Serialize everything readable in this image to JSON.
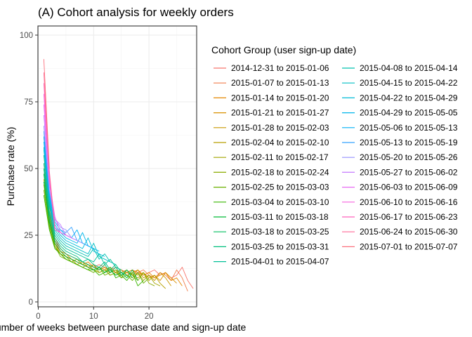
{
  "chart_data": {
    "type": "line",
    "title": "(A) Cohort analysis for weekly orders",
    "xlabel": "Number of weeks between purchase date and sign-up date",
    "ylabel": "Purchase rate (%)",
    "xlim": [
      0,
      28
    ],
    "ylim": [
      0,
      100
    ],
    "x_ticks": [
      0,
      10,
      20
    ],
    "x_tick_labels": [
      "0",
      "10",
      "20"
    ],
    "y_ticks": [
      0,
      25,
      50,
      75,
      100
    ],
    "y_tick_labels": [
      "0",
      "25",
      "50",
      "75",
      "100"
    ],
    "grid": true,
    "legend": {
      "title": "Cohort Group (user sign-up date)",
      "position": "right",
      "columns": 2
    },
    "series": [
      {
        "name": "2014-12-31 to 2015-01-06",
        "color": "#F8766D",
        "values": [
          62,
          38,
          24,
          20,
          18,
          17,
          16,
          15,
          14,
          13,
          14,
          13,
          12,
          13,
          12,
          11,
          12,
          11,
          10,
          11,
          12,
          10,
          11,
          9,
          10,
          13,
          8,
          5
        ]
      },
      {
        "name": "2015-01-07 to 2015-01-13",
        "color": "#F07E4D",
        "values": [
          58,
          36,
          23,
          19,
          17,
          16,
          15,
          14,
          13,
          14,
          12,
          13,
          12,
          11,
          12,
          11,
          10,
          11,
          12,
          10,
          9,
          11,
          10,
          8,
          12,
          9,
          4
        ]
      },
      {
        "name": "2015-01-14 to 2015-01-20",
        "color": "#E58700",
        "values": [
          55,
          34,
          22,
          19,
          18,
          16,
          15,
          14,
          15,
          13,
          12,
          13,
          11,
          12,
          11,
          10,
          11,
          12,
          10,
          11,
          9,
          10,
          11,
          8,
          9,
          6
        ]
      },
      {
        "name": "2015-01-21 to 2015-01-27",
        "color": "#D89000",
        "values": [
          52,
          33,
          22,
          18,
          17,
          16,
          15,
          14,
          13,
          12,
          13,
          12,
          11,
          12,
          10,
          11,
          12,
          10,
          11,
          9,
          10,
          8,
          11,
          9,
          7
        ]
      },
      {
        "name": "2015-01-28 to 2015-02-03",
        "color": "#C99800",
        "values": [
          50,
          32,
          21,
          18,
          16,
          15,
          14,
          15,
          13,
          12,
          11,
          12,
          13,
          11,
          10,
          11,
          10,
          12,
          9,
          10,
          8,
          11,
          9,
          6
        ]
      },
      {
        "name": "2015-02-04 to 2015-02-10",
        "color": "#B79F00",
        "values": [
          48,
          31,
          22,
          19,
          17,
          16,
          14,
          13,
          14,
          12,
          13,
          11,
          12,
          10,
          11,
          12,
          10,
          9,
          11,
          8,
          10,
          7,
          5
        ]
      },
      {
        "name": "2015-02-11 to 2015-02-17",
        "color": "#A3A500",
        "values": [
          46,
          30,
          21,
          18,
          16,
          15,
          16,
          14,
          13,
          12,
          11,
          12,
          10,
          11,
          12,
          10,
          9,
          11,
          8,
          10,
          7,
          6
        ]
      },
      {
        "name": "2015-02-18 to 2015-02-24",
        "color": "#8BAB00",
        "values": [
          44,
          29,
          20,
          18,
          17,
          15,
          14,
          13,
          12,
          14,
          11,
          12,
          10,
          11,
          9,
          12,
          10,
          8,
          11,
          7,
          6
        ]
      },
      {
        "name": "2015-02-25 to 2015-03-03",
        "color": "#6BB100",
        "values": [
          42,
          28,
          21,
          17,
          16,
          15,
          14,
          13,
          12,
          11,
          13,
          10,
          11,
          12,
          9,
          10,
          8,
          11,
          7,
          9
        ]
      },
      {
        "name": "2015-03-04 to 2015-03-10",
        "color": "#39B600",
        "values": [
          40,
          27,
          20,
          18,
          16,
          15,
          14,
          13,
          12,
          12,
          10,
          11,
          13,
          9,
          10,
          8,
          11,
          6,
          8
        ]
      },
      {
        "name": "2015-03-11 to 2015-03-18",
        "color": "#00BA38",
        "values": [
          45,
          30,
          22,
          19,
          17,
          16,
          15,
          14,
          13,
          12,
          13,
          11,
          12,
          10,
          11,
          9,
          12,
          8
        ]
      },
      {
        "name": "2015-03-18 to 2015-03-25",
        "color": "#00BD5F",
        "values": [
          48,
          31,
          23,
          20,
          18,
          17,
          16,
          15,
          14,
          13,
          12,
          14,
          11,
          13,
          10,
          12,
          9
        ]
      },
      {
        "name": "2015-03-25 to 2015-03-31",
        "color": "#00BF7D",
        "values": [
          50,
          33,
          24,
          21,
          19,
          18,
          17,
          15,
          16,
          14,
          13,
          15,
          12,
          14,
          11,
          10
        ]
      },
      {
        "name": "2015-04-01 to 2015-04-07",
        "color": "#00C097",
        "values": [
          52,
          34,
          25,
          22,
          20,
          19,
          18,
          17,
          16,
          15,
          18,
          14,
          16,
          13,
          12
        ]
      },
      {
        "name": "2015-04-08 to 2015-04-14",
        "color": "#00C0AF",
        "values": [
          55,
          36,
          26,
          23,
          21,
          20,
          19,
          18,
          17,
          20,
          16,
          18,
          15,
          14
        ]
      },
      {
        "name": "2015-04-15 to 2015-04-22",
        "color": "#00BFC4",
        "values": [
          57,
          37,
          27,
          24,
          22,
          21,
          20,
          19,
          18,
          22,
          17,
          16,
          15
        ]
      },
      {
        "name": "2015-04-22 to 2015-04-29",
        "color": "#00BCD8",
        "values": [
          58,
          38,
          28,
          25,
          23,
          22,
          21,
          20,
          24,
          19,
          18,
          17
        ]
      },
      {
        "name": "2015-04-29 to 2015-05-05",
        "color": "#00B6EB",
        "values": [
          60,
          39,
          29,
          26,
          24,
          23,
          22,
          26,
          21,
          20,
          19
        ]
      },
      {
        "name": "2015-05-06 to 2015-05-13",
        "color": "#00B0F6",
        "values": [
          62,
          40,
          30,
          27,
          25,
          24,
          27,
          22,
          21,
          20
        ]
      },
      {
        "name": "2015-05-13 to 2015-05-19",
        "color": "#35A2FF",
        "values": [
          64,
          41,
          30,
          27,
          26,
          28,
          23,
          22,
          21
        ]
      },
      {
        "name": "2015-05-20 to 2015-05-26",
        "color": "#9590FF",
        "values": [
          66,
          42,
          31,
          28,
          27,
          24,
          23,
          22
        ]
      },
      {
        "name": "2015-05-27 to 2015-06-02",
        "color": "#C77CFF",
        "values": [
          70,
          44,
          31,
          29,
          25,
          24,
          23
        ]
      },
      {
        "name": "2015-06-03 to 2015-06-09",
        "color": "#E76BF3",
        "values": [
          74,
          45,
          32,
          26,
          25,
          24
        ]
      },
      {
        "name": "2015-06-10 to 2015-06-16",
        "color": "#F862DF",
        "values": [
          78,
          46,
          28,
          26,
          25
        ]
      },
      {
        "name": "2015-06-17 to 2015-06-23",
        "color": "#FF62BC",
        "values": [
          82,
          48,
          27,
          26
        ]
      },
      {
        "name": "2015-06-24 to 2015-06-30",
        "color": "#FF6A98",
        "values": [
          86,
          49,
          28
        ]
      },
      {
        "name": "2015-07-01 to 2015-07-07",
        "color": "#FC717F",
        "values": [
          91,
          50
        ]
      }
    ]
  }
}
